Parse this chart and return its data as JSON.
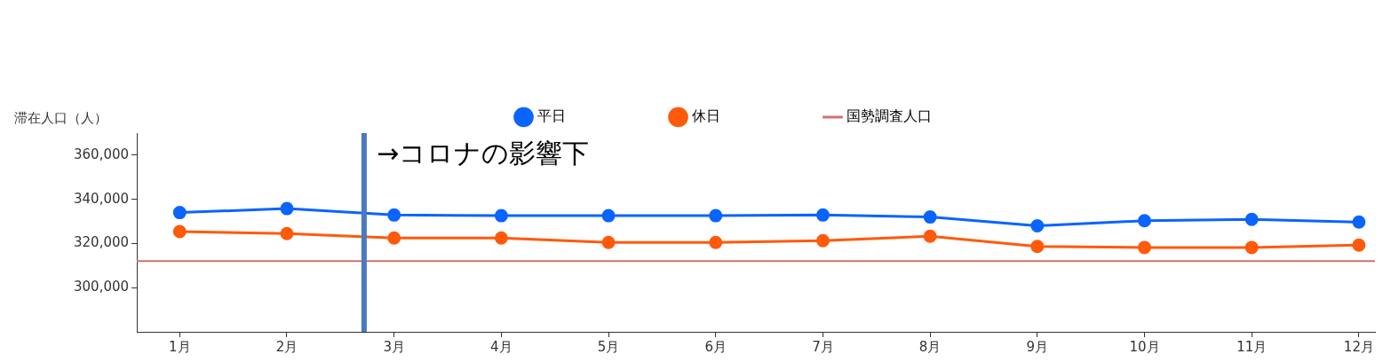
{
  "chart_data": {
    "type": "line",
    "ylabel": "滞在人口（人）",
    "x": [
      1,
      2,
      3,
      4,
      5,
      6,
      7,
      8,
      9,
      10,
      11,
      12
    ],
    "xlim": [
      0.6,
      12.15
    ],
    "xticks": [
      {
        "value": 1,
        "label": "1月"
      },
      {
        "value": 2,
        "label": "2月"
      },
      {
        "value": 3,
        "label": "3月"
      },
      {
        "value": 4,
        "label": "4月"
      },
      {
        "value": 5,
        "label": "5月"
      },
      {
        "value": 6,
        "label": "6月"
      },
      {
        "value": 7,
        "label": "7月"
      },
      {
        "value": 8,
        "label": "8月"
      },
      {
        "value": 9,
        "label": "9月"
      },
      {
        "value": 10,
        "label": "10月"
      },
      {
        "value": 11,
        "label": "11月"
      },
      {
        "value": 12,
        "label": "12月"
      }
    ],
    "ylim": [
      280000,
      370000
    ],
    "yticks": [
      {
        "value": 300000,
        "label": "300,000"
      },
      {
        "value": 320000,
        "label": "320,000"
      },
      {
        "value": 340000,
        "label": "340,000"
      },
      {
        "value": 360000,
        "label": "360,000"
      }
    ],
    "series": [
      {
        "name": "平日",
        "color": "#0a64ff",
        "values": [
          334000,
          335800,
          332900,
          332600,
          332600,
          332600,
          332900,
          332000,
          328000,
          330300,
          330900,
          329700
        ]
      },
      {
        "name": "休日",
        "color": "#ff5a0a",
        "values": [
          325400,
          324500,
          322500,
          322500,
          320500,
          320500,
          321300,
          323300,
          318700,
          318200,
          318200,
          319300
        ]
      }
    ],
    "ref_lines": [
      {
        "axis": "y",
        "value": 312000,
        "label": "国勢調査人口",
        "color": "#d07070"
      },
      {
        "axis": "x",
        "value": 2.72,
        "label": "→コロナの影響下",
        "color": "#4a7abf"
      }
    ],
    "marker": "circle",
    "line_style": "solid",
    "grid": false,
    "legend": "top"
  }
}
